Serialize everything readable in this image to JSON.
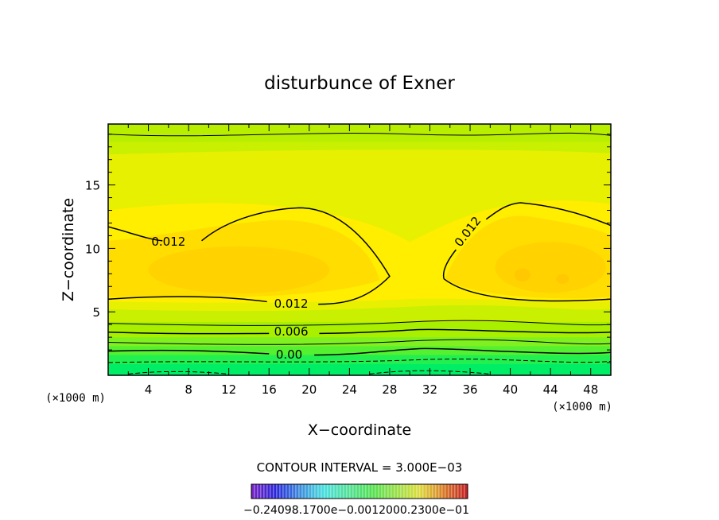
{
  "chart_data": {
    "type": "heatmap",
    "title": "disturbunce of Exner",
    "xlabel": "X−coordinate",
    "ylabel": "Z−coordinate",
    "x_unit": "(×1000 m)",
    "y_unit": "(×1000 m)",
    "xlim": [
      0,
      50
    ],
    "ylim": [
      0,
      19.8
    ],
    "x_ticks": [
      "4",
      "8",
      "12",
      "16",
      "20",
      "24",
      "28",
      "32",
      "36",
      "40",
      "44",
      "48"
    ],
    "y_ticks": [
      "5",
      "10",
      "15"
    ],
    "contour_interval_text": "CONTOUR INTERVAL = 3.000E−03",
    "contour_labels": [
      {
        "text": "0.012",
        "x": 6.0,
        "z": 10.5
      },
      {
        "text": "0.012",
        "x": 35.8,
        "z": 11.3
      },
      {
        "text": "0.012",
        "x": 18.2,
        "z": 5.6
      },
      {
        "text": "0.006",
        "x": 18.2,
        "z": 3.4
      },
      {
        "text": "0.00",
        "x": 18.0,
        "z": 1.6
      }
    ],
    "colorbar": {
      "min": -0.024,
      "max": 0.024,
      "tick_text": "−0.24098.1700e−0.0012000.2300e−01"
    }
  }
}
